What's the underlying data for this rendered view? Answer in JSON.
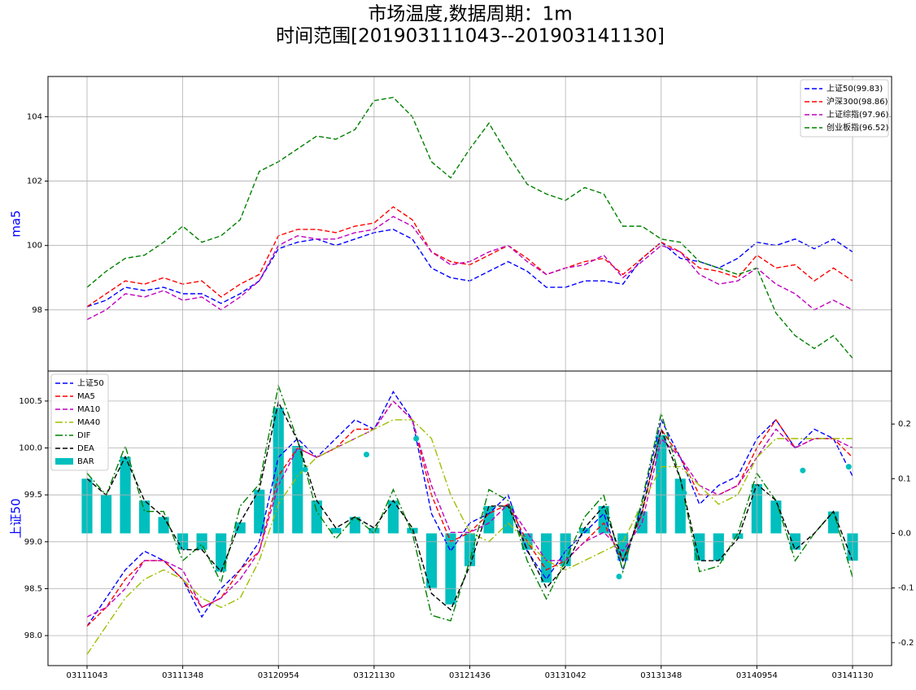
{
  "title": "市场温度,数据周期：1m",
  "subtitle": "时间范围[201903111043--201903141130]",
  "chart_data": [
    {
      "type": "line",
      "ylabel": "ma5",
      "ylabel_color": "#0000ff",
      "grid": true,
      "legend": "upper right",
      "x": [
        0,
        1,
        2,
        3,
        4,
        5,
        6,
        7,
        8,
        9,
        10,
        11,
        12,
        13,
        14,
        15,
        16,
        17,
        18,
        19,
        20,
        21,
        22,
        23,
        24,
        25,
        26,
        27,
        28,
        29,
        30,
        31,
        32,
        33,
        34,
        35,
        36,
        37,
        38,
        39,
        40
      ],
      "xlim": [
        -2.04,
        42.04
      ],
      "ylim": [
        96.1,
        105.25
      ],
      "yticks": [
        98,
        100,
        102,
        104
      ],
      "series": [
        {
          "name": "上证50(99.83)",
          "color": "#0000ff",
          "style": "dashed",
          "values": [
            98.1,
            98.3,
            98.7,
            98.6,
            98.7,
            98.5,
            98.5,
            98.2,
            98.5,
            98.9,
            99.9,
            100.1,
            100.2,
            100.0,
            100.2,
            100.4,
            100.5,
            100.2,
            99.3,
            99.0,
            98.9,
            99.2,
            99.5,
            99.2,
            98.7,
            98.7,
            98.9,
            98.9,
            98.8,
            99.6,
            100.1,
            99.6,
            99.5,
            99.3,
            99.6,
            100.1,
            100.0,
            100.2,
            99.9,
            100.2,
            99.8
          ]
        },
        {
          "name": "沪深300(98.86)",
          "color": "#ff0000",
          "style": "dashed",
          "values": [
            98.1,
            98.5,
            98.9,
            98.8,
            99.0,
            98.8,
            98.9,
            98.4,
            98.8,
            99.1,
            100.3,
            100.5,
            100.5,
            100.4,
            100.6,
            100.7,
            101.2,
            100.8,
            99.8,
            99.5,
            99.4,
            99.7,
            100.0,
            99.6,
            99.1,
            99.3,
            99.5,
            99.6,
            99.1,
            99.6,
            100.1,
            99.8,
            99.3,
            99.2,
            99.0,
            99.7,
            99.3,
            99.4,
            98.9,
            99.3,
            98.9
          ]
        },
        {
          "name": "上证综指(97.96)",
          "color": "#bf00bf",
          "style": "dashed",
          "values": [
            97.7,
            98.0,
            98.5,
            98.4,
            98.6,
            98.3,
            98.4,
            98.0,
            98.4,
            98.9,
            100.0,
            100.3,
            100.2,
            100.2,
            100.4,
            100.5,
            100.9,
            100.6,
            99.8,
            99.4,
            99.5,
            99.8,
            100.0,
            99.5,
            99.1,
            99.3,
            99.4,
            99.7,
            99.0,
            99.5,
            100.0,
            99.8,
            99.1,
            98.8,
            98.9,
            99.3,
            98.8,
            98.5,
            98.0,
            98.3,
            98.0
          ]
        },
        {
          "name": "创业板指(96.52)",
          "color": "#008000",
          "style": "dashed",
          "values": [
            98.7,
            99.2,
            99.6,
            99.7,
            100.1,
            100.6,
            100.1,
            100.3,
            100.8,
            102.3,
            102.6,
            103.0,
            103.4,
            103.3,
            103.6,
            104.5,
            104.6,
            104.0,
            102.6,
            102.1,
            103.0,
            103.8,
            102.8,
            101.9,
            101.6,
            101.4,
            101.8,
            101.6,
            100.6,
            100.6,
            100.2,
            100.1,
            99.5,
            99.3,
            99.1,
            99.3,
            97.9,
            97.2,
            96.8,
            97.2,
            96.5
          ]
        }
      ]
    },
    {
      "type": "line",
      "ylabel": "上证50",
      "ylabel_color": "#0000ff",
      "grid": true,
      "legend": "upper left",
      "x": [
        0,
        1,
        2,
        3,
        4,
        5,
        6,
        7,
        8,
        9,
        10,
        11,
        12,
        13,
        14,
        15,
        16,
        17,
        18,
        19,
        20,
        21,
        22,
        23,
        24,
        25,
        26,
        27,
        28,
        29,
        30,
        31,
        32,
        33,
        34,
        35,
        36,
        37,
        38,
        39,
        40
      ],
      "xlim": [
        -2.04,
        42.04
      ],
      "xticks": [
        {
          "value": 0,
          "label": "03111043"
        },
        {
          "value": 5,
          "label": "03111348"
        },
        {
          "value": 10,
          "label": "03120954"
        },
        {
          "value": 15,
          "label": "03121130"
        },
        {
          "value": 20,
          "label": "03121436"
        },
        {
          "value": 25,
          "label": "03131042"
        },
        {
          "value": 30,
          "label": "03131348"
        },
        {
          "value": 35,
          "label": "03140954"
        },
        {
          "value": 40,
          "label": "03141130"
        }
      ],
      "ylim": [
        97.68,
        100.82
      ],
      "yticks": [
        {
          "value": 98,
          "label": "98.0"
        },
        98.5,
        {
          "value": 99,
          "label": "99.0"
        },
        99.5,
        {
          "value": 100,
          "label": "100.0"
        },
        100.5
      ],
      "y2lim": [
        -0.242,
        0.297
      ],
      "y2ticks": [
        -0.2,
        -0.1,
        {
          "value": 0,
          "label": "0.0"
        },
        0.1,
        0.2
      ],
      "series": [
        {
          "name": "上证50",
          "color": "#0000ff",
          "style": "dashed",
          "values": [
            98.1,
            98.4,
            98.7,
            98.9,
            98.8,
            98.6,
            98.2,
            98.5,
            98.7,
            99.0,
            99.9,
            100.1,
            99.9,
            100.1,
            100.3,
            100.2,
            100.6,
            100.3,
            99.3,
            98.9,
            99.2,
            99.3,
            99.5,
            98.9,
            98.6,
            98.9,
            99.1,
            99.3,
            98.7,
            99.4,
            100.3,
            99.9,
            99.4,
            99.6,
            99.7,
            100.1,
            100.3,
            100.0,
            100.2,
            100.1,
            99.7
          ]
        },
        {
          "name": "MA5",
          "color": "#ff0000",
          "style": "dashed",
          "values": [
            98.1,
            98.3,
            98.6,
            98.8,
            98.8,
            98.6,
            98.3,
            98.4,
            98.7,
            98.9,
            99.7,
            100.0,
            99.9,
            100.0,
            100.2,
            100.2,
            100.5,
            100.3,
            99.5,
            99.0,
            99.1,
            99.3,
            99.4,
            99.0,
            98.7,
            98.8,
            99.0,
            99.2,
            98.8,
            99.3,
            100.2,
            99.9,
            99.5,
            99.5,
            99.6,
            100.0,
            100.3,
            100.0,
            100.1,
            100.1,
            99.9
          ]
        },
        {
          "name": "MA10",
          "color": "#bf00bf",
          "style": "dashed",
          "values": [
            98.2,
            98.3,
            98.5,
            98.8,
            98.8,
            98.7,
            98.3,
            98.4,
            98.6,
            98.9,
            99.6,
            100.0,
            99.9,
            100.0,
            100.1,
            100.2,
            100.5,
            100.3,
            99.6,
            99.1,
            99.1,
            99.2,
            99.4,
            99.1,
            98.8,
            98.8,
            99.0,
            99.1,
            98.9,
            99.2,
            100.1,
            99.9,
            99.6,
            99.5,
            99.6,
            99.9,
            100.2,
            100.0,
            100.1,
            100.1,
            100.0
          ]
        },
        {
          "name": "MA40",
          "color": "#9fbf00",
          "style": "dashdot",
          "values": [
            97.8,
            98.1,
            98.4,
            98.6,
            98.7,
            98.6,
            98.4,
            98.3,
            98.4,
            98.8,
            99.4,
            99.7,
            99.9,
            100.0,
            100.1,
            100.2,
            100.3,
            100.3,
            100.1,
            99.5,
            99.1,
            99.0,
            99.2,
            99.0,
            98.8,
            98.7,
            98.8,
            98.9,
            99.0,
            99.4,
            99.8,
            99.8,
            99.6,
            99.4,
            99.5,
            99.9,
            100.1,
            100.1,
            100.1,
            100.1,
            100.1
          ]
        },
        {
          "name": "DIF",
          "color": "#008000",
          "style": "dashdot",
          "axis": "y2",
          "values": [
            0.11,
            0.07,
            0.16,
            0.04,
            0.04,
            -0.05,
            -0.02,
            -0.09,
            0.05,
            0.09,
            0.27,
            0.17,
            0.04,
            -0.01,
            0.03,
            0.0,
            0.08,
            0.0,
            -0.15,
            -0.16,
            -0.05,
            0.08,
            0.06,
            -0.05,
            -0.12,
            -0.05,
            0.03,
            0.07,
            -0.07,
            0.06,
            0.22,
            0.1,
            -0.07,
            -0.06,
            0.0,
            0.11,
            0.06,
            -0.05,
            0.0,
            0.04,
            -0.08
          ]
        },
        {
          "name": "DEA",
          "color": "#000000",
          "style": "dashed",
          "axis": "y2",
          "values": [
            0.1,
            0.07,
            0.14,
            0.06,
            0.03,
            -0.03,
            -0.03,
            -0.07,
            0.02,
            0.08,
            0.24,
            0.17,
            0.06,
            0.01,
            0.03,
            0.01,
            0.06,
            0.01,
            -0.11,
            -0.14,
            -0.06,
            0.05,
            0.05,
            -0.03,
            -0.1,
            -0.06,
            0.01,
            0.05,
            -0.05,
            0.04,
            0.19,
            0.1,
            -0.05,
            -0.05,
            -0.01,
            0.09,
            0.06,
            -0.03,
            0.0,
            0.04,
            -0.05
          ]
        },
        {
          "name": "BAR",
          "type": "bar",
          "color": "#00bfbf",
          "axis": "y2",
          "values": [
            0.1,
            0.07,
            0.14,
            0.06,
            0.03,
            -0.03,
            -0.03,
            -0.07,
            0.02,
            0.08,
            0.23,
            0.16,
            0.06,
            0.01,
            0.03,
            0.01,
            0.06,
            0.01,
            -0.1,
            -0.13,
            -0.06,
            0.05,
            0.05,
            -0.03,
            -0.09,
            -0.06,
            0.01,
            0.05,
            -0.05,
            0.04,
            0.18,
            0.1,
            -0.05,
            -0.05,
            -0.01,
            0.09,
            0.06,
            -0.03,
            0.0,
            0.04,
            -0.05
          ]
        },
        {
          "type": "scatter",
          "color": "#00bfbf",
          "x": [
            11.4,
            14.6,
            17.2,
            27.8,
            31.2,
            37.4,
            39.8
          ],
          "values": [
            99.77,
            99.93,
            100.1,
            98.63,
            99.52,
            99.76,
            99.8
          ]
        }
      ]
    }
  ]
}
